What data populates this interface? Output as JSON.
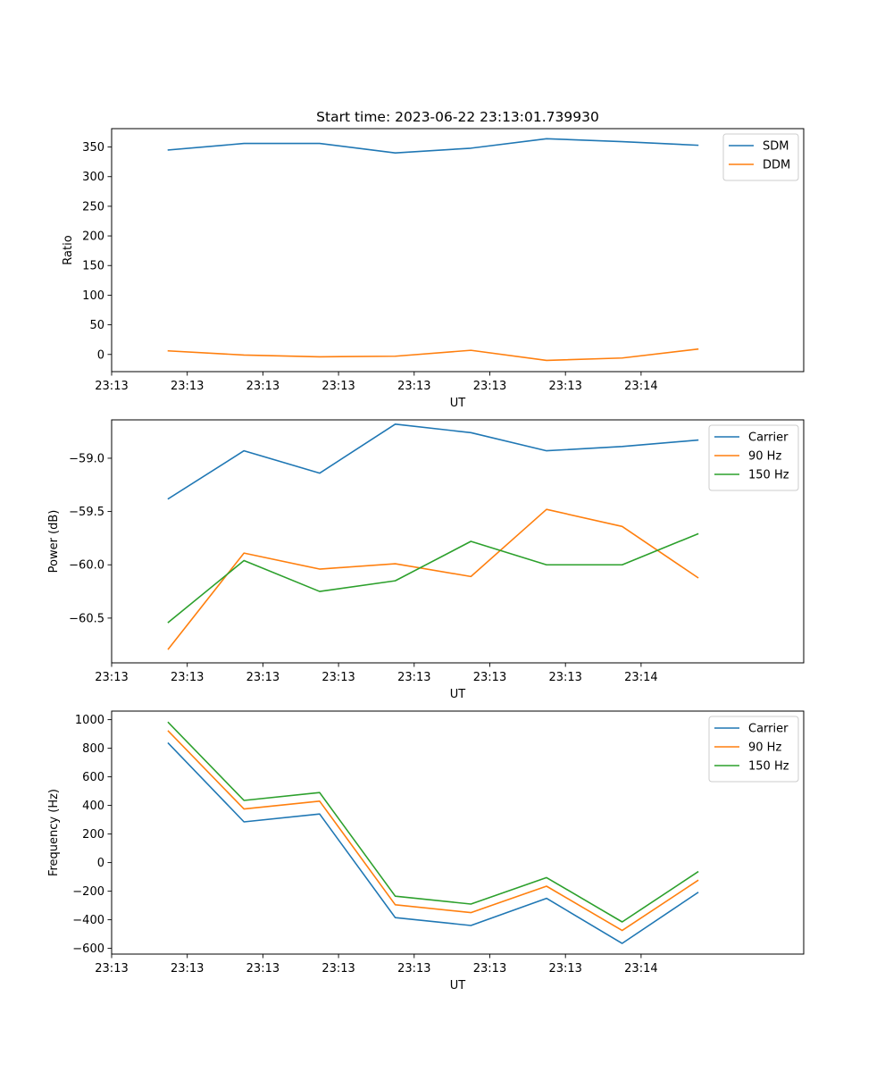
{
  "figure": {
    "title": "Start time: 2023-06-22 23:13:01.739930"
  },
  "chart_data": [
    {
      "type": "line",
      "x": [
        0,
        1,
        2,
        3,
        4,
        5,
        6,
        7
      ],
      "xlim": [
        -0.75,
        8.4
      ],
      "xticks": [
        -0.75,
        0.25,
        1.25,
        2.25,
        3.25,
        4.25,
        5.25,
        6.25
      ],
      "xtick_labels": [
        "23:13",
        "23:13",
        "23:13",
        "23:13",
        "23:13",
        "23:13",
        "23:13",
        "23:14"
      ],
      "xlabel": "UT",
      "ylabel": "Ratio",
      "ylim": [
        -29,
        381
      ],
      "yticks": [
        0,
        50,
        100,
        150,
        200,
        250,
        300,
        350
      ],
      "ytick_labels": [
        "0",
        "50",
        "100",
        "150",
        "200",
        "250",
        "300",
        "350"
      ],
      "legend": "top-right",
      "series": [
        {
          "name": "SDM",
          "color": "#1f77b4",
          "values": [
            345,
            356,
            356,
            340,
            348,
            364,
            359,
            353
          ]
        },
        {
          "name": "DDM",
          "color": "#ff7f0e",
          "values": [
            6,
            -1,
            -4,
            -3,
            7,
            -10,
            -6,
            9
          ]
        }
      ]
    },
    {
      "type": "line",
      "x": [
        0,
        1,
        2,
        3,
        4,
        5,
        6,
        7
      ],
      "xlim": [
        -0.75,
        8.4
      ],
      "xticks": [
        -0.75,
        0.25,
        1.25,
        2.25,
        3.25,
        4.25,
        5.25,
        6.25
      ],
      "xtick_labels": [
        "23:13",
        "23:13",
        "23:13",
        "23:13",
        "23:13",
        "23:13",
        "23:13",
        "23:14"
      ],
      "xlabel": "UT",
      "ylabel": "Power (dB)",
      "ylim": [
        -60.92,
        -58.64
      ],
      "yticks": [
        -59.0,
        -59.5,
        -60.0,
        -60.5
      ],
      "ytick_labels": [
        "−59.0",
        "−59.5",
        "−60.0",
        "−60.5"
      ],
      "legend": "top-right",
      "series": [
        {
          "name": "Carrier",
          "color": "#1f77b4",
          "values": [
            -59.38,
            -58.93,
            -59.14,
            -58.68,
            -58.76,
            -58.93,
            -58.89,
            -58.83
          ]
        },
        {
          "name": "90 Hz",
          "color": "#ff7f0e",
          "values": [
            -60.79,
            -59.89,
            -60.04,
            -59.99,
            -60.11,
            -59.48,
            -59.64,
            -60.12
          ]
        },
        {
          "name": "150 Hz",
          "color": "#2ca02c",
          "values": [
            -60.54,
            -59.96,
            -60.25,
            -60.15,
            -59.78,
            -60.0,
            -60.0,
            -59.71
          ]
        }
      ]
    },
    {
      "type": "line",
      "x": [
        0,
        1,
        2,
        3,
        4,
        5,
        6,
        7
      ],
      "xlim": [
        -0.75,
        8.4
      ],
      "xticks": [
        -0.75,
        0.25,
        1.25,
        2.25,
        3.25,
        4.25,
        5.25,
        6.25
      ],
      "xtick_labels": [
        "23:13",
        "23:13",
        "23:13",
        "23:13",
        "23:13",
        "23:13",
        "23:13",
        "23:14"
      ],
      "xlabel": "UT",
      "ylabel": "Frequency (Hz)",
      "ylim": [
        -640,
        1060
      ],
      "yticks": [
        1000,
        800,
        600,
        400,
        200,
        0,
        -200,
        -400,
        -600
      ],
      "ytick_labels": [
        "1000",
        "800",
        "600",
        "400",
        "200",
        "0",
        "−200",
        "−400",
        "−600"
      ],
      "legend": "top-right",
      "series": [
        {
          "name": "Carrier",
          "color": "#1f77b4",
          "values": [
            835,
            285,
            340,
            -385,
            -440,
            -250,
            -565,
            -210
          ]
        },
        {
          "name": "90 Hz",
          "color": "#ff7f0e",
          "values": [
            920,
            375,
            430,
            -295,
            -350,
            -165,
            -475,
            -125
          ]
        },
        {
          "name": "150 Hz",
          "color": "#2ca02c",
          "values": [
            980,
            435,
            490,
            -235,
            -290,
            -105,
            -415,
            -65
          ]
        }
      ]
    }
  ]
}
